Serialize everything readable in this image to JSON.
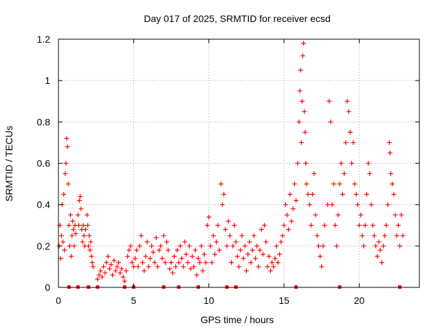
{
  "chart_data": {
    "type": "scatter",
    "title": "Day 017 of 2025, SRMTID for receiver ecsd",
    "xlabel": "GPS time / hours",
    "ylabel": "SRMTID / TECUs",
    "xlim": [
      0,
      24
    ],
    "ylim": [
      0,
      1.2
    ],
    "x_ticks": [
      {
        "value": 0,
        "label": "0"
      },
      {
        "value": 5,
        "label": "5"
      },
      {
        "value": 10,
        "label": "10"
      },
      {
        "value": 15,
        "label": "15"
      },
      {
        "value": 20,
        "label": "20"
      }
    ],
    "y_ticks": [
      {
        "value": 0,
        "label": "0"
      },
      {
        "value": 0.2,
        "label": "0.2"
      },
      {
        "value": 0.4,
        "label": "0.4"
      },
      {
        "value": 0.6,
        "label": "0.6"
      },
      {
        "value": 0.8,
        "label": "0.8"
      },
      {
        "value": 1.0,
        "label": "1"
      },
      {
        "value": 1.2,
        "label": "1.2"
      }
    ],
    "grid": true,
    "marker": "plus",
    "color": "#ff0000",
    "series": [
      {
        "name": "SRMTID",
        "points": [
          [
            0.05,
            0.2
          ],
          [
            0.1,
            0.3
          ],
          [
            0.15,
            0.14
          ],
          [
            0.2,
            0.25
          ],
          [
            0.25,
            0.4
          ],
          [
            0.3,
            0.22
          ],
          [
            0.35,
            0.45
          ],
          [
            0.4,
            0.18
          ],
          [
            0.45,
            0.55
          ],
          [
            0.5,
            0.6
          ],
          [
            0.55,
            0.72
          ],
          [
            0.6,
            0.68
          ],
          [
            0.65,
            0.5
          ],
          [
            0.7,
            0.3
          ],
          [
            0.75,
            0.2
          ],
          [
            0.8,
            0.35
          ],
          [
            0.85,
            0.15
          ],
          [
            0.9,
            0.25
          ],
          [
            0.95,
            0.32
          ],
          [
            1.0,
            0.28
          ],
          [
            1.05,
            0.2
          ],
          [
            1.1,
            0.3
          ],
          [
            1.15,
            0.26
          ],
          [
            1.3,
            0.35
          ],
          [
            1.35,
            0.3
          ],
          [
            1.4,
            0.42
          ],
          [
            1.45,
            0.44
          ],
          [
            1.5,
            0.38
          ],
          [
            1.55,
            0.28
          ],
          [
            1.6,
            0.22
          ],
          [
            1.65,
            0.3
          ],
          [
            1.7,
            0.25
          ],
          [
            1.75,
            0.2
          ],
          [
            1.8,
            0.28
          ],
          [
            1.9,
            0.35
          ],
          [
            1.95,
            0.3
          ],
          [
            2.0,
            0.2
          ],
          [
            2.05,
            0.25
          ],
          [
            2.1,
            0.18
          ],
          [
            2.15,
            0.22
          ],
          [
            2.2,
            0.15
          ],
          [
            2.25,
            0.12
          ],
          [
            2.3,
            0.1
          ],
          [
            2.6,
            0.04
          ],
          [
            2.7,
            0.06
          ],
          [
            2.8,
            0.08
          ],
          [
            2.9,
            0.05
          ],
          [
            3.0,
            0.1
          ],
          [
            3.1,
            0.07
          ],
          [
            3.2,
            0.12
          ],
          [
            3.3,
            0.15
          ],
          [
            3.4,
            0.09
          ],
          [
            3.5,
            0.11
          ],
          [
            3.6,
            0.06
          ],
          [
            3.7,
            0.13
          ],
          [
            3.8,
            0.08
          ],
          [
            3.9,
            0.1
          ],
          [
            4.0,
            0.12
          ],
          [
            4.1,
            0.07
          ],
          [
            4.2,
            0.09
          ],
          [
            4.3,
            0.05
          ],
          [
            4.4,
            0.03
          ],
          [
            4.5,
            0.08
          ],
          [
            4.6,
            0.15
          ],
          [
            4.7,
            0.18
          ],
          [
            4.8,
            0.2
          ],
          [
            4.9,
            0.12
          ],
          [
            5.0,
            0.1
          ],
          [
            5.1,
            0.14
          ],
          [
            5.2,
            0.18
          ],
          [
            5.3,
            0.1
          ],
          [
            5.4,
            0.2
          ],
          [
            5.5,
            0.25
          ],
          [
            5.6,
            0.12
          ],
          [
            5.7,
            0.08
          ],
          [
            5.8,
            0.15
          ],
          [
            5.9,
            0.22
          ],
          [
            6.0,
            0.1
          ],
          [
            6.1,
            0.14
          ],
          [
            6.2,
            0.2
          ],
          [
            6.3,
            0.17
          ],
          [
            6.4,
            0.12
          ],
          [
            6.5,
            0.24
          ],
          [
            6.6,
            0.1
          ],
          [
            6.7,
            0.18
          ],
          [
            6.8,
            0.2
          ],
          [
            6.9,
            0.14
          ],
          [
            7.0,
            0.25
          ],
          [
            7.1,
            0.12
          ],
          [
            7.2,
            0.22
          ],
          [
            7.3,
            0.18
          ],
          [
            7.4,
            0.09
          ],
          [
            7.5,
            0.12
          ],
          [
            7.6,
            0.07
          ],
          [
            7.7,
            0.15
          ],
          [
            7.8,
            0.1
          ],
          [
            7.9,
            0.18
          ],
          [
            8.0,
            0.12
          ],
          [
            8.1,
            0.2
          ],
          [
            8.2,
            0.14
          ],
          [
            8.3,
            0.1
          ],
          [
            8.4,
            0.22
          ],
          [
            8.5,
            0.16
          ],
          [
            8.6,
            0.12
          ],
          [
            8.7,
            0.2
          ],
          [
            8.8,
            0.09
          ],
          [
            8.9,
            0.15
          ],
          [
            9.0,
            0.1
          ],
          [
            9.1,
            0.18
          ],
          [
            9.2,
            0.06
          ],
          [
            9.3,
            0.14
          ],
          [
            9.4,
            0.12
          ],
          [
            9.5,
            0.2
          ],
          [
            9.6,
            0.08
          ],
          [
            9.7,
            0.16
          ],
          [
            9.8,
            0.12
          ],
          [
            9.9,
            0.3
          ],
          [
            10.0,
            0.34
          ],
          [
            10.1,
            0.2
          ],
          [
            10.2,
            0.12
          ],
          [
            10.3,
            0.25
          ],
          [
            10.4,
            0.16
          ],
          [
            10.5,
            0.22
          ],
          [
            10.6,
            0.3
          ],
          [
            10.7,
            0.18
          ],
          [
            10.8,
            0.5
          ],
          [
            10.9,
            0.4
          ],
          [
            11.0,
            0.45
          ],
          [
            11.1,
            0.28
          ],
          [
            11.2,
            0.2
          ],
          [
            11.3,
            0.32
          ],
          [
            11.4,
            0.25
          ],
          [
            11.5,
            0.12
          ],
          [
            11.6,
            0.2
          ],
          [
            11.7,
            0.3
          ],
          [
            11.8,
            0.22
          ],
          [
            11.9,
            0.15
          ],
          [
            12.0,
            0.1
          ],
          [
            12.1,
            0.18
          ],
          [
            12.2,
            0.25
          ],
          [
            12.3,
            0.14
          ],
          [
            12.4,
            0.2
          ],
          [
            12.5,
            0.08
          ],
          [
            12.6,
            0.16
          ],
          [
            12.7,
            0.22
          ],
          [
            12.8,
            0.12
          ],
          [
            12.9,
            0.18
          ],
          [
            13.0,
            0.25
          ],
          [
            13.1,
            0.14
          ],
          [
            13.2,
            0.2
          ],
          [
            13.3,
            0.1
          ],
          [
            13.4,
            0.18
          ],
          [
            13.5,
            0.28
          ],
          [
            13.6,
            0.16
          ],
          [
            13.7,
            0.3
          ],
          [
            13.8,
            0.22
          ],
          [
            13.9,
            0.1
          ],
          [
            14.0,
            0.15
          ],
          [
            14.1,
            0.08
          ],
          [
            14.2,
            0.12
          ],
          [
            14.3,
            0.1
          ],
          [
            14.4,
            0.14
          ],
          [
            14.5,
            0.2
          ],
          [
            14.6,
            0.12
          ],
          [
            14.7,
            0.16
          ],
          [
            14.8,
            0.22
          ],
          [
            14.9,
            0.25
          ],
          [
            15.0,
            0.3
          ],
          [
            15.1,
            0.4
          ],
          [
            15.2,
            0.35
          ],
          [
            15.3,
            0.28
          ],
          [
            15.4,
            0.45
          ],
          [
            15.5,
            0.32
          ],
          [
            15.6,
            0.38
          ],
          [
            15.7,
            0.5
          ],
          [
            15.8,
            0.42
          ],
          [
            15.9,
            0.6
          ],
          [
            16.0,
            0.8
          ],
          [
            16.05,
            0.95
          ],
          [
            16.1,
            1.05
          ],
          [
            16.15,
            0.7
          ],
          [
            16.2,
            0.9
          ],
          [
            16.25,
            1.12
          ],
          [
            16.3,
            1.18
          ],
          [
            16.35,
            0.85
          ],
          [
            16.4,
            0.75
          ],
          [
            16.45,
            0.6
          ],
          [
            16.5,
            0.5
          ],
          [
            16.6,
            0.45
          ],
          [
            16.7,
            0.4
          ],
          [
            16.8,
            0.3
          ],
          [
            16.9,
            0.45
          ],
          [
            17.0,
            0.55
          ],
          [
            17.1,
            0.35
          ],
          [
            17.2,
            0.25
          ],
          [
            17.3,
            0.2
          ],
          [
            17.4,
            0.15
          ],
          [
            17.5,
            0.1
          ],
          [
            17.6,
            0.2
          ],
          [
            17.7,
            0.3
          ],
          [
            17.9,
            0.4
          ],
          [
            18.0,
            0.9
          ],
          [
            18.1,
            0.8
          ],
          [
            18.2,
            0.4
          ],
          [
            18.3,
            0.5
          ],
          [
            18.4,
            0.3
          ],
          [
            18.5,
            0.2
          ],
          [
            18.6,
            0.35
          ],
          [
            18.7,
            0.5
          ],
          [
            18.8,
            0.6
          ],
          [
            18.9,
            0.45
          ],
          [
            19.0,
            0.55
          ],
          [
            19.1,
            0.7
          ],
          [
            19.2,
            0.9
          ],
          [
            19.3,
            0.85
          ],
          [
            19.4,
            0.75
          ],
          [
            19.5,
            0.6
          ],
          [
            19.6,
            0.7
          ],
          [
            19.7,
            0.5
          ],
          [
            19.8,
            0.45
          ],
          [
            19.9,
            0.4
          ],
          [
            20.0,
            0.3
          ],
          [
            20.1,
            0.35
          ],
          [
            20.2,
            0.25
          ],
          [
            20.3,
            0.2
          ],
          [
            20.4,
            0.3
          ],
          [
            20.5,
            0.45
          ],
          [
            20.6,
            0.6
          ],
          [
            20.7,
            0.55
          ],
          [
            20.8,
            0.4
          ],
          [
            20.9,
            0.3
          ],
          [
            21.0,
            0.25
          ],
          [
            21.1,
            0.2
          ],
          [
            21.2,
            0.15
          ],
          [
            21.3,
            0.22
          ],
          [
            21.4,
            0.18
          ],
          [
            21.5,
            0.12
          ],
          [
            21.6,
            0.2
          ],
          [
            21.7,
            0.25
          ],
          [
            21.8,
            0.3
          ],
          [
            21.9,
            0.4
          ],
          [
            22.0,
            0.7
          ],
          [
            22.05,
            0.65
          ],
          [
            22.1,
            0.55
          ],
          [
            22.2,
            0.5
          ],
          [
            22.3,
            0.45
          ],
          [
            22.4,
            0.35
          ],
          [
            22.5,
            0.25
          ],
          [
            22.6,
            0.3
          ],
          [
            22.7,
            0.2
          ],
          [
            22.8,
            0.35
          ],
          [
            22.9,
            0.25
          ]
        ]
      }
    ],
    "gap_markers_x": [
      0.7,
      1.3,
      2.0,
      2.6,
      4.4,
      5.0,
      7.0,
      8.0,
      9.3,
      11.2,
      11.8,
      15.8,
      18.7,
      22.7
    ]
  }
}
